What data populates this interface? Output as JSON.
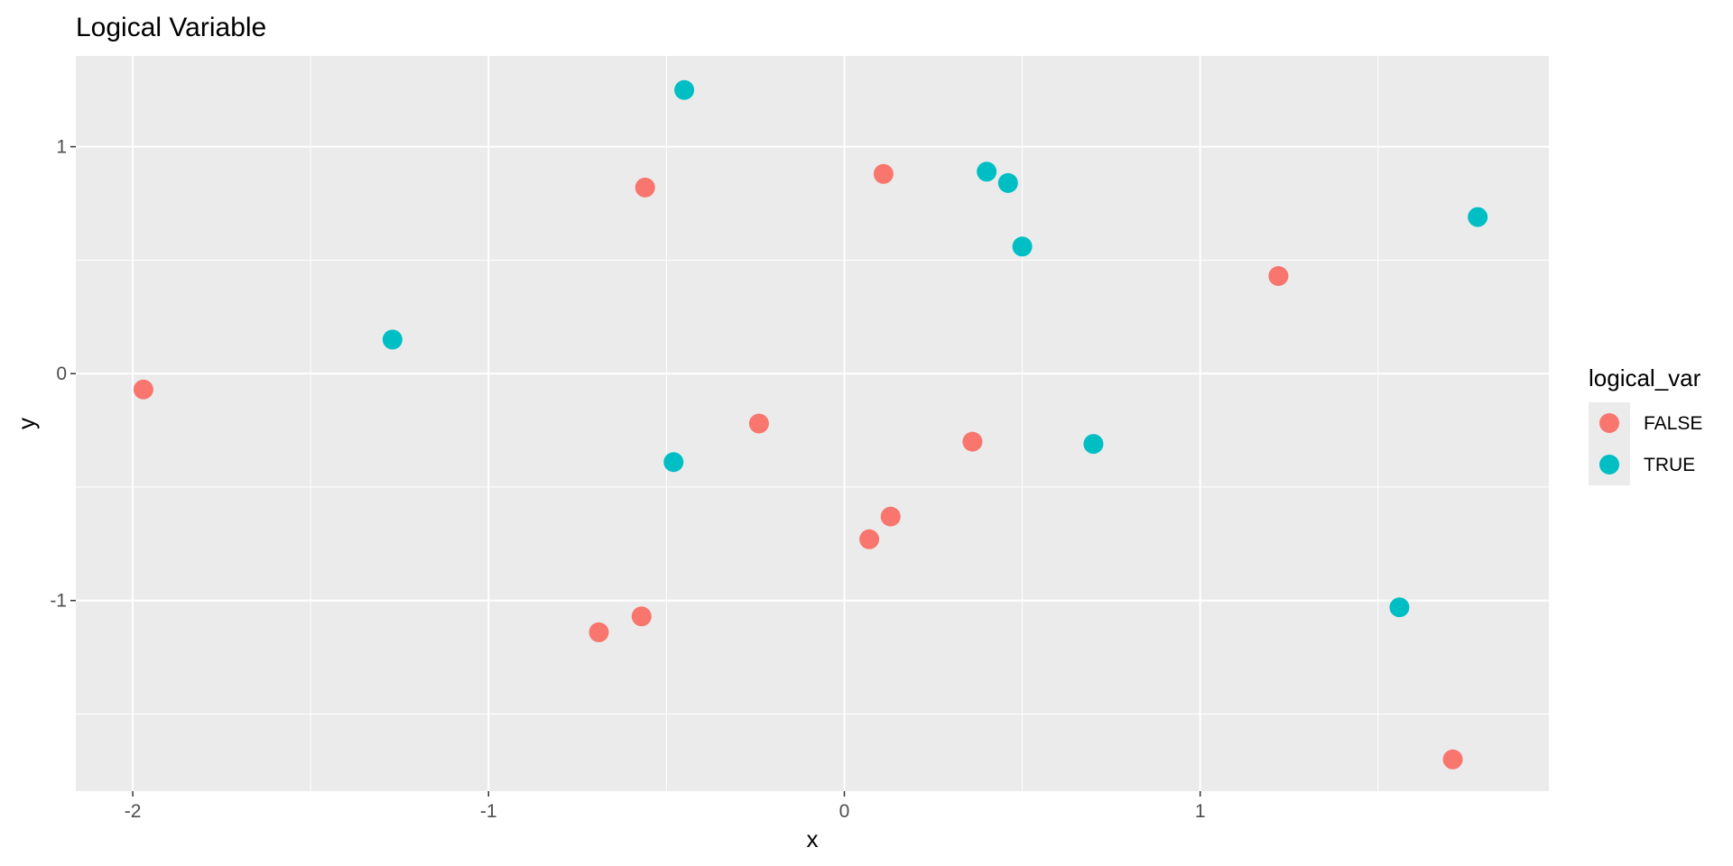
{
  "chart_data": {
    "type": "scatter",
    "title": "Logical Variable",
    "xlabel": "x",
    "ylabel": "y",
    "xlim": [
      -2.16,
      1.98
    ],
    "ylim": [
      -1.84,
      1.4
    ],
    "x_ticks": [
      -2,
      -1,
      0,
      1
    ],
    "x_tick_labels": [
      "-2",
      "-1",
      "0",
      "1"
    ],
    "y_ticks": [
      -1,
      0,
      1
    ],
    "y_tick_labels": [
      "-1",
      "0",
      "1"
    ],
    "grid": true,
    "panel_background": "#ebebeb",
    "grid_color": "#ffffff",
    "legend": {
      "title": "logical_var",
      "position": "right",
      "entries": [
        {
          "label": "FALSE",
          "color": "#f8766d"
        },
        {
          "label": "TRUE",
          "color": "#00bfc4"
        }
      ]
    },
    "series": [
      {
        "name": "FALSE",
        "color": "#f8766d",
        "points": [
          {
            "x": -1.97,
            "y": -0.07
          },
          {
            "x": -0.56,
            "y": 0.82
          },
          {
            "x": 0.11,
            "y": 0.88
          },
          {
            "x": 1.22,
            "y": 0.43
          },
          {
            "x": -0.24,
            "y": -0.22
          },
          {
            "x": 0.36,
            "y": -0.3
          },
          {
            "x": 0.13,
            "y": -0.63
          },
          {
            "x": 0.07,
            "y": -0.73
          },
          {
            "x": -0.57,
            "y": -1.07
          },
          {
            "x": -0.69,
            "y": -1.14
          },
          {
            "x": 1.71,
            "y": -1.7
          }
        ]
      },
      {
        "name": "TRUE",
        "color": "#00bfc4",
        "points": [
          {
            "x": -0.45,
            "y": 1.25
          },
          {
            "x": 0.4,
            "y": 0.89
          },
          {
            "x": 0.46,
            "y": 0.84
          },
          {
            "x": 0.5,
            "y": 0.56
          },
          {
            "x": 1.78,
            "y": 0.69
          },
          {
            "x": -1.27,
            "y": 0.15
          },
          {
            "x": -0.48,
            "y": -0.39
          },
          {
            "x": 0.7,
            "y": -0.31
          },
          {
            "x": 1.56,
            "y": -1.03
          }
        ]
      }
    ]
  }
}
